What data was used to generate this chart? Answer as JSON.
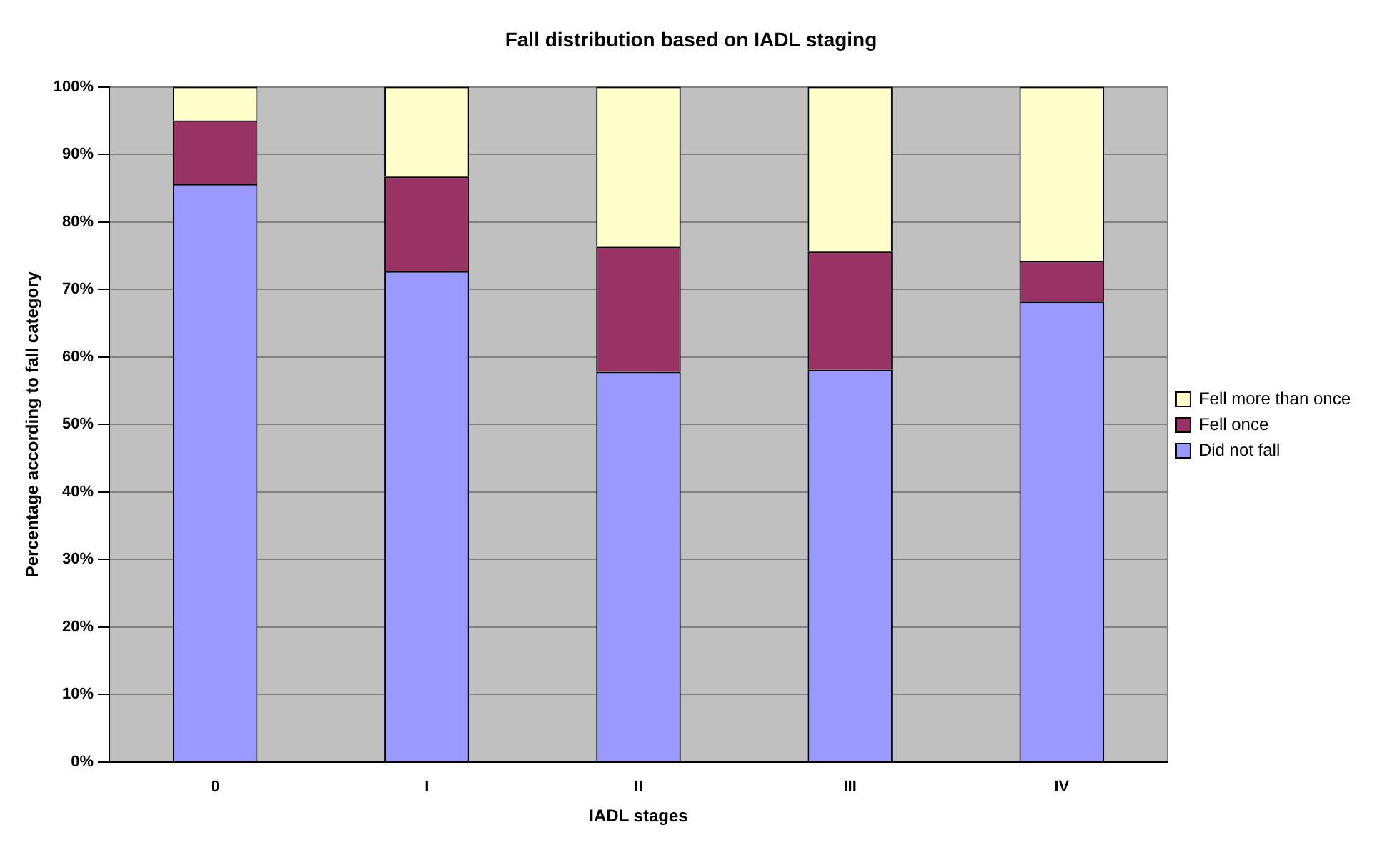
{
  "chart_data": {
    "type": "bar",
    "title": "Fall distribution based on IADL staging",
    "xlabel": "IADL stages",
    "ylabel": "Percentage according to fall category",
    "categories": [
      "0",
      "I",
      "II",
      "III",
      "IV"
    ],
    "stacked": true,
    "series": [
      {
        "name": "Did not fall",
        "color": "#9999ff",
        "values": [
          85.6,
          72.7,
          57.8,
          58.1,
          68.2
        ]
      },
      {
        "name": "Fell once",
        "color": "#993366",
        "values": [
          9.4,
          14.0,
          18.5,
          17.5,
          6.0
        ]
      },
      {
        "name": "Fell more than once",
        "color": "#ffffcc",
        "values": [
          5.0,
          13.3,
          23.7,
          24.4,
          25.8
        ]
      }
    ],
    "ylim": [
      0,
      100
    ],
    "yticks": [
      {
        "value": 0,
        "label": "0%"
      },
      {
        "value": 10,
        "label": "10%"
      },
      {
        "value": 20,
        "label": "20%"
      },
      {
        "value": 30,
        "label": "30%"
      },
      {
        "value": 40,
        "label": "40%"
      },
      {
        "value": 50,
        "label": "50%"
      },
      {
        "value": 60,
        "label": "60%"
      },
      {
        "value": 70,
        "label": "70%"
      },
      {
        "value": 80,
        "label": "80%"
      },
      {
        "value": 90,
        "label": "90%"
      },
      {
        "value": 100,
        "label": "100%"
      }
    ],
    "grid": "y",
    "legend": "right"
  }
}
